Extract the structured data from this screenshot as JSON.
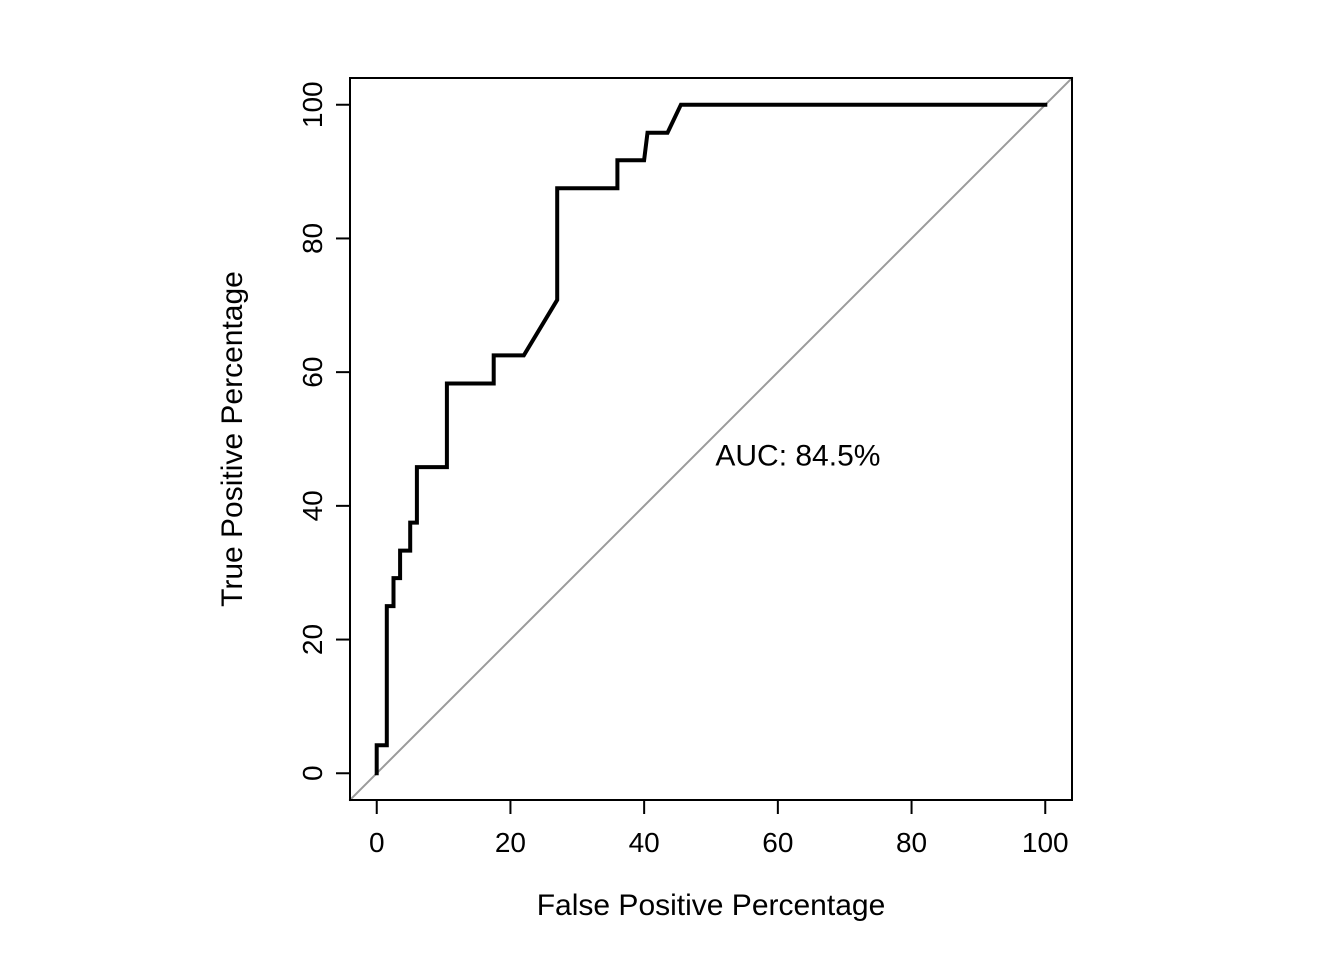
{
  "figure": {
    "background": "#ffffff"
  },
  "chart_data": {
    "type": "line",
    "subtype": "roc-curve",
    "title": "",
    "xlabel": "False Positive Percentage",
    "ylabel": "True Positive Percentage",
    "xlim": [
      0,
      100
    ],
    "ylim": [
      0,
      100
    ],
    "axis_padding": 4,
    "xticks": [
      0,
      20,
      40,
      60,
      80,
      100
    ],
    "yticks": [
      0,
      20,
      40,
      60,
      80,
      100
    ],
    "grid": false,
    "legend": "none",
    "box": true,
    "annotation": {
      "text": "AUC: 84.5%",
      "x": 63,
      "y": 47.5
    },
    "series": [
      {
        "name": "chance-diagonal",
        "color": "#9b9b9b",
        "line_width": 2,
        "points": [
          [
            -4,
            -4
          ],
          [
            104,
            104
          ]
        ]
      },
      {
        "name": "roc-step-curve",
        "color": "#000000",
        "line_width": 4,
        "points": [
          [
            0,
            0
          ],
          [
            0,
            4.2
          ],
          [
            1.5,
            4.2
          ],
          [
            1.5,
            25
          ],
          [
            2.5,
            25
          ],
          [
            2.5,
            29.2
          ],
          [
            3.5,
            29.2
          ],
          [
            3.5,
            33.3
          ],
          [
            5,
            33.3
          ],
          [
            5,
            37.5
          ],
          [
            6,
            37.5
          ],
          [
            6,
            45.8
          ],
          [
            10.5,
            45.8
          ],
          [
            10.5,
            58.3
          ],
          [
            17.5,
            58.3
          ],
          [
            17.5,
            62.5
          ],
          [
            22,
            62.5
          ],
          [
            27,
            70.8
          ],
          [
            27,
            87.5
          ],
          [
            36,
            87.5
          ],
          [
            36,
            91.7
          ],
          [
            40,
            91.7
          ],
          [
            40.5,
            95.8
          ],
          [
            43.5,
            95.8
          ],
          [
            45.5,
            100
          ],
          [
            100,
            100
          ]
        ]
      }
    ],
    "style": {
      "axis_color": "#000000",
      "text_color": "#000000",
      "tick_length": 14
    }
  }
}
